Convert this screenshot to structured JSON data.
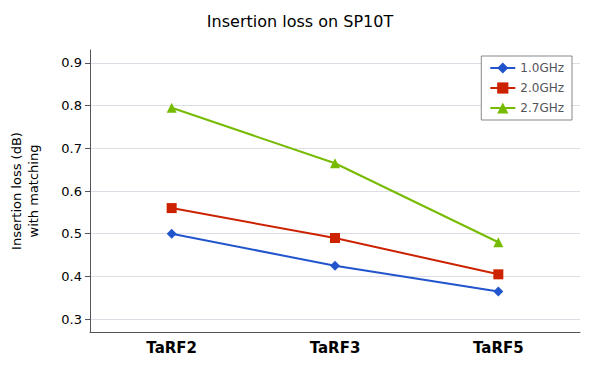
{
  "chart_data": {
    "type": "line",
    "title": "Insertion loss on SP10T",
    "ylabel": [
      "Insertion loss (dB)",
      "with matching"
    ],
    "categories": [
      "TaRF2",
      "TaRF3",
      "TaRF5"
    ],
    "series": [
      {
        "name": "1.0GHz",
        "color": "#2255cc",
        "marker": "diamond",
        "values": [
          0.5,
          0.425,
          0.365
        ]
      },
      {
        "name": "2.0GHz",
        "color": "#cc2200",
        "marker": "square",
        "values": [
          0.56,
          0.49,
          0.405
        ]
      },
      {
        "name": "2.7GHz",
        "color": "#77bb00",
        "marker": "triangle",
        "values": [
          0.795,
          0.665,
          0.48
        ]
      }
    ],
    "ylim": [
      0.27,
      0.93
    ],
    "yticks": [
      0.3,
      0.4,
      0.5,
      0.6,
      0.7,
      0.8,
      0.9
    ],
    "grid": true,
    "legend": "upper right"
  }
}
